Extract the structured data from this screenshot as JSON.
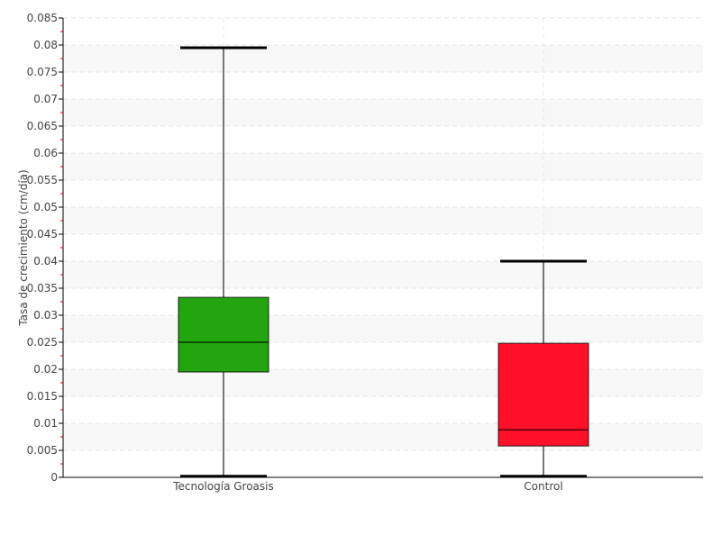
{
  "chart_data": {
    "type": "box",
    "title": "",
    "xlabel": "",
    "ylabel": "Tasa de crecimiento (cm/día)",
    "ylim": [
      0,
      0.085
    ],
    "yticks": [
      "0",
      "0.005",
      "0.01",
      "0.015",
      "0.02",
      "0.025",
      "0.03",
      "0.035",
      "0.04",
      "0.045",
      "0.05",
      "0.055",
      "0.06",
      "0.065",
      "0.07",
      "0.075",
      "0.08",
      "0.085"
    ],
    "grid": true,
    "categories": [
      "Tecnología Groasis",
      "Control"
    ],
    "boxes": [
      {
        "category": "Tecnología Groasis",
        "min": 0.0002,
        "q1": 0.0195,
        "median": 0.025,
        "q3": 0.0333,
        "max": 0.0795,
        "color": "#22a50f"
      },
      {
        "category": "Control",
        "min": 0.0002,
        "q1": 0.0058,
        "median": 0.0088,
        "q3": 0.0248,
        "max": 0.04,
        "color": "#ff0f28"
      }
    ]
  }
}
